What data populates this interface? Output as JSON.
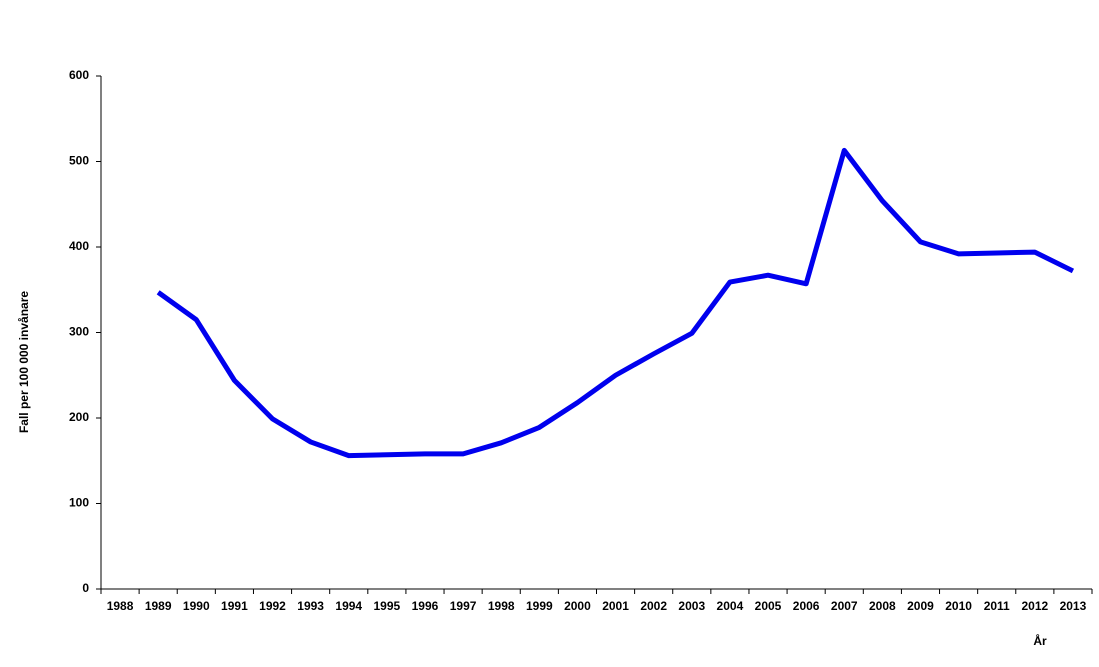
{
  "chart_data": {
    "type": "line",
    "ylabel": "Fall per 100 000 invånare",
    "xlabel": "År",
    "categories": [
      "1988",
      "1989",
      "1990",
      "1991",
      "1992",
      "1993",
      "1994",
      "1995",
      "1996",
      "1997",
      "1998",
      "1999",
      "2000",
      "2001",
      "2002",
      "2003",
      "2004",
      "2005",
      "2006",
      "2007",
      "2008",
      "2009",
      "2010",
      "2011",
      "2012",
      "2013"
    ],
    "series": [
      {
        "color": "#0000ee",
        "values": [
          null,
          347,
          315,
          244,
          199,
          172,
          156,
          157,
          158,
          158,
          171,
          189,
          218,
          250,
          275,
          299,
          359,
          367,
          357,
          513,
          454,
          406,
          392,
          393,
          394,
          372
        ]
      }
    ],
    "ylim": [
      0,
      600
    ],
    "yticks": [
      0,
      100,
      200,
      300,
      400,
      500,
      600
    ]
  }
}
